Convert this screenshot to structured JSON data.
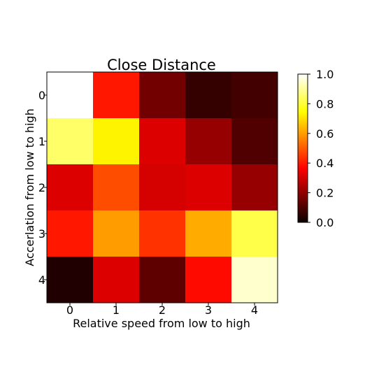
{
  "chart_data": {
    "type": "heatmap",
    "title": "Close Distance",
    "xlabel": "Relative speed from low to high",
    "ylabel": "Accerlation from low to high",
    "x_ticks": [
      "0",
      "1",
      "2",
      "3",
      "4"
    ],
    "y_ticks": [
      "0",
      "1",
      "2",
      "3",
      "4"
    ],
    "colormap": "hot",
    "vmin": 0.0,
    "vmax": 1.0,
    "colorbar_ticks": [
      "0.0",
      "0.2",
      "0.4",
      "0.6",
      "0.8",
      "1.0"
    ],
    "values": [
      [
        1.0,
        0.4,
        0.15,
        0.06,
        0.08
      ],
      [
        0.85,
        0.73,
        0.3,
        0.2,
        0.1
      ],
      [
        0.3,
        0.48,
        0.29,
        0.3,
        0.2
      ],
      [
        0.4,
        0.6,
        0.44,
        0.62,
        0.82
      ],
      [
        0.03,
        0.3,
        0.12,
        0.38,
        0.95
      ]
    ]
  }
}
